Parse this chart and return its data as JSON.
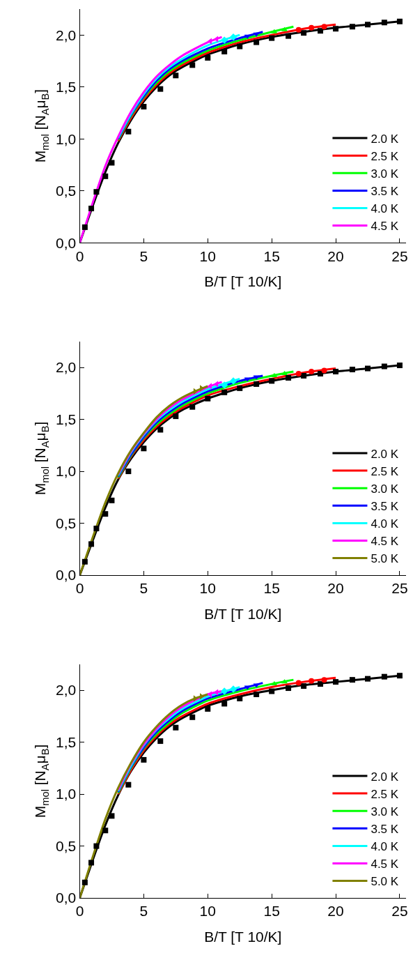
{
  "chart_data": [
    {
      "type": "line",
      "xlabel": "B/T [T 10/K]",
      "ylabel": "M$_{mol}$ [N$_{A}$μ$_{B}$]",
      "xlim": [
        0,
        25.5
      ],
      "ylim": [
        0,
        2.25
      ],
      "xticks": [
        0,
        5,
        10,
        15,
        20,
        25
      ],
      "yticks": [
        {
          "value": 0,
          "label": "0,0"
        },
        {
          "value": 0.5,
          "label": "0,5"
        },
        {
          "value": 1,
          "label": "1,0"
        },
        {
          "value": 1.5,
          "label": "1,5"
        },
        {
          "value": 2,
          "label": "2,0"
        }
      ],
      "legend": "bottom right",
      "series": [
        {
          "type": "scatter",
          "marker": "square",
          "color": "#000000",
          "x": [
            0.4,
            0.9,
            1.3,
            2,
            2.5,
            3.8,
            5,
            6.3,
            7.5,
            8.8,
            10,
            11.3,
            12.5,
            13.8,
            15,
            16.3,
            17.5,
            18.8,
            20,
            21.3,
            22.5,
            23.8,
            25
          ],
          "values": [
            0.15,
            0.33,
            0.49,
            0.64,
            0.77,
            1.07,
            1.31,
            1.48,
            1.61,
            1.71,
            1.78,
            1.84,
            1.89,
            1.93,
            1.97,
            1.99,
            2.02,
            2.04,
            2.06,
            2.08,
            2.1,
            2.12,
            2.13
          ]
        },
        {
          "type": "scatter",
          "marker": "circle",
          "color": "#ff0000",
          "x": [
            17.1,
            18.1,
            19.1
          ],
          "values": [
            2.05,
            2.07,
            2.08
          ]
        },
        {
          "type": "scatter",
          "marker": "triangle",
          "color": "#00ff00",
          "x": [
            15.2,
            16.0
          ],
          "values": [
            2.03,
            2.05
          ]
        },
        {
          "type": "scatter",
          "marker": "triangle-down",
          "color": "#0000ff",
          "x": [
            13.1,
            13.8
          ],
          "values": [
            1.99,
            2.01
          ]
        },
        {
          "type": "scatter",
          "marker": "diamond",
          "color": "#00ffff",
          "x": [
            11.3,
            12.0
          ],
          "values": [
            1.95,
            1.98
          ]
        },
        {
          "type": "scatter",
          "marker": "triangle-left",
          "color": "#ff00ff",
          "x": [
            10.2,
            10.7
          ],
          "values": [
            1.94,
            1.96
          ]
        },
        {
          "name": "2.0 K",
          "color": "#000000",
          "x": [
            0,
            1,
            2,
            3,
            4,
            5,
            6,
            7,
            8,
            10,
            12.5,
            15,
            17.5,
            20,
            22.5,
            25
          ],
          "values": [
            0,
            0.35,
            0.68,
            0.96,
            1.18,
            1.36,
            1.5,
            1.61,
            1.69,
            1.81,
            1.91,
            1.98,
            2.03,
            2.07,
            2.1,
            2.13
          ]
        },
        {
          "name": "2.5 K",
          "color": "#ff0000",
          "x": [
            3,
            4,
            5,
            6,
            7,
            8,
            10,
            12.5,
            15,
            17.5,
            20
          ],
          "values": [
            0.98,
            1.2,
            1.38,
            1.52,
            1.63,
            1.71,
            1.83,
            1.93,
            2.0,
            2.06,
            2.1
          ]
        },
        {
          "name": "3.0 K",
          "color": "#00ff00",
          "x": [
            3,
            4,
            5,
            6,
            7,
            8,
            10,
            12.5,
            15,
            16.7
          ],
          "values": [
            0.99,
            1.22,
            1.4,
            1.54,
            1.65,
            1.73,
            1.85,
            1.95,
            2.03,
            2.08
          ]
        },
        {
          "name": "3.5 K",
          "color": "#0000ff",
          "x": [
            3,
            4,
            5,
            6,
            7,
            8,
            10,
            12.5,
            14.3
          ],
          "values": [
            1.0,
            1.23,
            1.41,
            1.56,
            1.67,
            1.75,
            1.87,
            1.97,
            2.03
          ]
        },
        {
          "name": "4.0 K",
          "color": "#00ffff",
          "x": [
            3,
            4,
            5,
            6,
            7,
            8,
            10,
            12.5
          ],
          "values": [
            1.01,
            1.24,
            1.43,
            1.58,
            1.69,
            1.77,
            1.9,
            2.0
          ]
        },
        {
          "name": "4.5 K",
          "color": "#ff00ff",
          "x": [
            0,
            1,
            2,
            3,
            4,
            5,
            6,
            7,
            8,
            10,
            11.1
          ],
          "values": [
            0,
            0.38,
            0.74,
            1.02,
            1.26,
            1.45,
            1.6,
            1.71,
            1.8,
            1.93,
            1.98
          ]
        }
      ]
    },
    {
      "type": "line",
      "xlabel": "B/T [T 10/K]",
      "ylabel": "M$_{mol}$ [N$_{A}$μ$_{B}$]",
      "xlim": [
        0,
        25.5
      ],
      "ylim": [
        0,
        2.25
      ],
      "xticks": [
        0,
        5,
        10,
        15,
        20,
        25
      ],
      "yticks": [
        {
          "value": 0,
          "label": "0,0"
        },
        {
          "value": 0.5,
          "label": "0,5"
        },
        {
          "value": 1,
          "label": "1,0"
        },
        {
          "value": 1.5,
          "label": "1,5"
        },
        {
          "value": 2,
          "label": "2,0"
        }
      ],
      "legend": "bottom right",
      "series": [
        {
          "type": "scatter",
          "marker": "square",
          "color": "#000000",
          "x": [
            0.4,
            0.9,
            1.3,
            2,
            2.5,
            3.8,
            5,
            6.3,
            7.5,
            8.8,
            10,
            11.3,
            12.5,
            13.8,
            15,
            16.3,
            17.5,
            18.8,
            20,
            21.3,
            22.5,
            23.8,
            25
          ],
          "values": [
            0.13,
            0.3,
            0.45,
            0.59,
            0.72,
            1.0,
            1.22,
            1.4,
            1.53,
            1.62,
            1.7,
            1.76,
            1.8,
            1.84,
            1.87,
            1.9,
            1.92,
            1.94,
            1.96,
            1.98,
            1.99,
            2.01,
            2.02
          ]
        },
        {
          "type": "scatter",
          "marker": "circle",
          "color": "#ff0000",
          "x": [
            17.1,
            18.1,
            19.1
          ],
          "values": [
            1.94,
            1.96,
            1.97
          ]
        },
        {
          "type": "scatter",
          "marker": "triangle",
          "color": "#00ff00",
          "x": [
            15.2,
            16.0
          ],
          "values": [
            1.92,
            1.94
          ]
        },
        {
          "type": "scatter",
          "marker": "triangle-down",
          "color": "#0000ff",
          "x": [
            13.1,
            13.8
          ],
          "values": [
            1.89,
            1.91
          ]
        },
        {
          "type": "scatter",
          "marker": "diamond",
          "color": "#00ffff",
          "x": [
            11.3,
            12.0
          ],
          "values": [
            1.83,
            1.87
          ]
        },
        {
          "type": "scatter",
          "marker": "triangle-left",
          "color": "#ff00ff",
          "x": [
            10.2,
            10.7
          ],
          "values": [
            1.82,
            1.84
          ]
        },
        {
          "type": "scatter",
          "marker": "triangle-right",
          "color": "#808000",
          "x": [
            9.0,
            9.5
          ],
          "values": [
            1.77,
            1.8
          ]
        },
        {
          "name": "2.0 K",
          "color": "#000000",
          "x": [
            0,
            1,
            2,
            3,
            4,
            5,
            6,
            7,
            8,
            10,
            12.5,
            15,
            17.5,
            20,
            22.5,
            25
          ],
          "values": [
            0,
            0.33,
            0.65,
            0.92,
            1.12,
            1.28,
            1.41,
            1.51,
            1.59,
            1.7,
            1.8,
            1.87,
            1.92,
            1.96,
            1.99,
            2.02
          ]
        },
        {
          "name": "2.5 K",
          "color": "#ff0000",
          "x": [
            3,
            4,
            5,
            6,
            7,
            8,
            10,
            12.5,
            15,
            17.5,
            20
          ],
          "values": [
            0.93,
            1.14,
            1.3,
            1.43,
            1.53,
            1.61,
            1.73,
            1.82,
            1.89,
            1.95,
            1.99
          ]
        },
        {
          "name": "3.0 K",
          "color": "#00ff00",
          "x": [
            3,
            4,
            5,
            6,
            7,
            8,
            10,
            12.5,
            15,
            16.7
          ],
          "values": [
            0.94,
            1.15,
            1.32,
            1.45,
            1.55,
            1.63,
            1.75,
            1.85,
            1.92,
            1.96
          ]
        },
        {
          "name": "3.5 K",
          "color": "#0000ff",
          "x": [
            3,
            4,
            5,
            6,
            7,
            8,
            10,
            12.5,
            14.3
          ],
          "values": [
            0.95,
            1.16,
            1.33,
            1.47,
            1.57,
            1.65,
            1.77,
            1.87,
            1.92
          ]
        },
        {
          "name": "4.0 K",
          "color": "#00ffff",
          "x": [
            3,
            4,
            5,
            6,
            7,
            8,
            10,
            12.5
          ],
          "values": [
            0.96,
            1.18,
            1.35,
            1.49,
            1.59,
            1.67,
            1.79,
            1.89
          ]
        },
        {
          "name": "4.5 K",
          "color": "#ff00ff",
          "x": [
            3,
            4,
            5,
            6,
            7,
            8,
            10,
            11.1
          ],
          "values": [
            0.97,
            1.19,
            1.36,
            1.5,
            1.61,
            1.69,
            1.81,
            1.86
          ]
        },
        {
          "name": "5.0 K",
          "color": "#808000",
          "x": [
            0,
            1,
            2,
            3,
            4,
            5,
            6,
            7,
            8,
            9,
            10
          ],
          "values": [
            0,
            0.36,
            0.7,
            0.98,
            1.2,
            1.37,
            1.52,
            1.63,
            1.71,
            1.77,
            1.82
          ]
        }
      ]
    },
    {
      "type": "line",
      "xlabel": "B/T [T 10/K]",
      "ylabel": "M$_{mol}$ [N$_{A}$μ$_{B}$]",
      "xlim": [
        0,
        25.5
      ],
      "ylim": [
        0,
        2.25
      ],
      "xticks": [
        0,
        5,
        10,
        15,
        20,
        25
      ],
      "yticks": [
        {
          "value": 0,
          "label": "0,0"
        },
        {
          "value": 0.5,
          "label": "0,5"
        },
        {
          "value": 1,
          "label": "1,0"
        },
        {
          "value": 1.5,
          "label": "1,5"
        },
        {
          "value": 2,
          "label": "2,0"
        }
      ],
      "legend": "bottom right",
      "series": [
        {
          "type": "scatter",
          "marker": "square",
          "color": "#000000",
          "x": [
            0.4,
            0.9,
            1.3,
            2,
            2.5,
            3.8,
            5,
            6.3,
            7.5,
            8.8,
            10,
            11.3,
            12.5,
            13.8,
            15,
            16.3,
            17.5,
            18.8,
            20,
            21.3,
            22.5,
            23.8,
            25
          ],
          "values": [
            0.15,
            0.34,
            0.5,
            0.65,
            0.79,
            1.09,
            1.33,
            1.51,
            1.64,
            1.74,
            1.82,
            1.87,
            1.92,
            1.96,
            1.99,
            2.02,
            2.04,
            2.06,
            2.08,
            2.1,
            2.11,
            2.13,
            2.14
          ]
        },
        {
          "type": "scatter",
          "marker": "circle",
          "color": "#ff0000",
          "x": [
            17.1,
            18.1,
            19.1
          ],
          "values": [
            2.07,
            2.09,
            2.1
          ]
        },
        {
          "type": "scatter",
          "marker": "triangle",
          "color": "#00ff00",
          "x": [
            15.2,
            16.0
          ],
          "values": [
            2.06,
            2.08
          ]
        },
        {
          "type": "scatter",
          "marker": "triangle-down",
          "color": "#0000ff",
          "x": [
            13.1,
            13.8
          ],
          "values": [
            2.03,
            2.05
          ]
        },
        {
          "type": "scatter",
          "marker": "diamond",
          "color": "#00ffff",
          "x": [
            11.3,
            12.0
          ],
          "values": [
            1.99,
            2.01
          ]
        },
        {
          "type": "scatter",
          "marker": "triangle-left",
          "color": "#ff00ff",
          "x": [
            10.2,
            10.7
          ],
          "values": [
            1.96,
            1.98
          ]
        },
        {
          "type": "scatter",
          "marker": "triangle-right",
          "color": "#808000",
          "x": [
            9.0,
            9.5
          ],
          "values": [
            1.92,
            1.94
          ]
        },
        {
          "name": "2.0 K",
          "color": "#000000",
          "x": [
            0,
            1,
            2,
            3,
            4,
            5,
            6,
            7,
            8,
            10,
            12.5,
            15,
            17.5,
            20,
            22.5,
            25
          ],
          "values": [
            0,
            0.36,
            0.7,
            0.99,
            1.22,
            1.4,
            1.54,
            1.65,
            1.73,
            1.85,
            1.94,
            2.0,
            2.05,
            2.08,
            2.11,
            2.14
          ]
        },
        {
          "name": "2.5 K",
          "color": "#ff0000",
          "x": [
            3,
            4,
            5,
            6,
            7,
            8,
            10,
            12.5,
            15,
            17.5,
            20
          ],
          "values": [
            1.0,
            1.23,
            1.42,
            1.56,
            1.67,
            1.75,
            1.87,
            1.96,
            2.03,
            2.08,
            2.12
          ]
        },
        {
          "name": "3.0 K",
          "color": "#00ff00",
          "x": [
            3,
            4,
            5,
            6,
            7,
            8,
            10,
            12.5,
            15,
            16.7
          ],
          "values": [
            1.01,
            1.25,
            1.44,
            1.58,
            1.69,
            1.78,
            1.9,
            1.99,
            2.06,
            2.1
          ]
        },
        {
          "name": "3.5 K",
          "color": "#0000ff",
          "x": [
            3,
            4,
            5,
            6,
            7,
            8,
            10,
            12.5,
            14.3
          ],
          "values": [
            1.02,
            1.26,
            1.45,
            1.6,
            1.71,
            1.8,
            1.92,
            2.01,
            2.07
          ]
        },
        {
          "name": "4.0 K",
          "color": "#00ffff",
          "x": [
            3,
            4,
            5,
            6,
            7,
            8,
            10,
            12.5
          ],
          "values": [
            1.03,
            1.27,
            1.47,
            1.62,
            1.73,
            1.82,
            1.94,
            2.03
          ]
        },
        {
          "name": "4.5 K",
          "color": "#ff00ff",
          "x": [
            3,
            4,
            5,
            6,
            7,
            8,
            10,
            11.1
          ],
          "values": [
            1.04,
            1.29,
            1.48,
            1.63,
            1.75,
            1.84,
            1.96,
            1.99
          ]
        },
        {
          "name": "5.0 K",
          "color": "#808000",
          "x": [
            0,
            1,
            2,
            3,
            4,
            5,
            6,
            7,
            8,
            9,
            10
          ],
          "values": [
            0,
            0.39,
            0.76,
            1.06,
            1.3,
            1.5,
            1.65,
            1.77,
            1.86,
            1.92,
            1.96
          ]
        }
      ]
    }
  ]
}
